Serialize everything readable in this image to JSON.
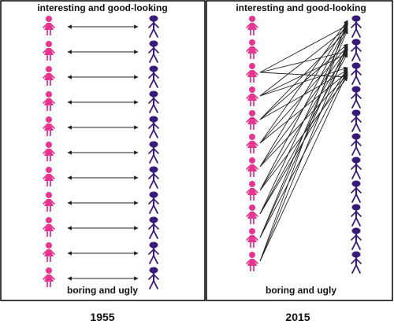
{
  "panels": [
    {
      "top_label": "interesting and good-looking",
      "bottom_label": "boring and ugly",
      "year": "1955",
      "pairing": "one-to-one",
      "female_figures": 11,
      "male_figures": 11
    },
    {
      "top_label": "interesting and good-looking",
      "bottom_label": "boring and ugly",
      "year": "2015",
      "pairing": "many-to-few",
      "female_figures": 11,
      "male_figures": 11
    }
  ],
  "colors": {
    "female": "#e8358f",
    "male": "#3a1a78",
    "arrow": "#222222",
    "border": "#000000"
  },
  "icons": {
    "female": "female-figure-icon",
    "male": "male-figure-icon"
  }
}
